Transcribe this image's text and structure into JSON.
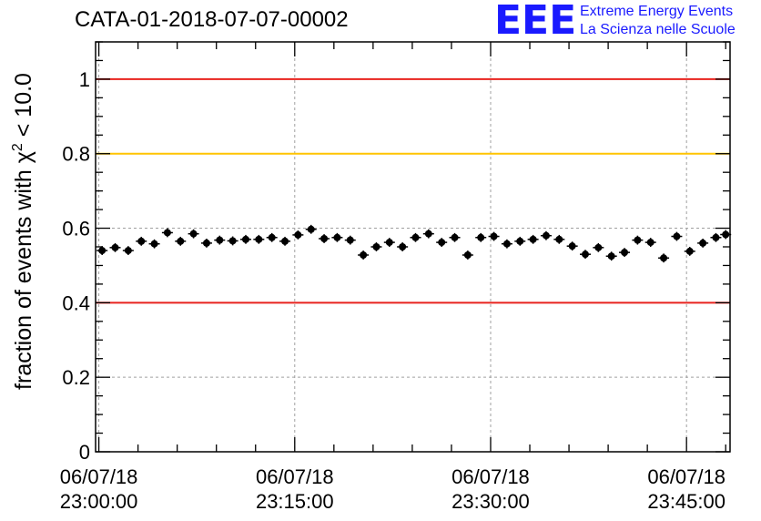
{
  "title": "CATA-01-2018-07-07-00002",
  "logo": {
    "mark": "EEE",
    "line1": "Extreme Energy Events",
    "line2": "La Scienza nelle Scuole"
  },
  "colors": {
    "red_line": "#e8231e",
    "yellow_line": "#ffc400",
    "points": "#000000",
    "grid": "#a0a0a0",
    "logo": "#1a1aff"
  },
  "chart_data": {
    "type": "scatter",
    "title": "CATA-01-2018-07-07-00002",
    "ylabel": "fraction of events with χ² < 10.0",
    "xlabel": "",
    "ylim": [
      0,
      1.1
    ],
    "xlim": [
      "2018-07-06 22:59:45",
      "2018-07-06 23:48:20"
    ],
    "x_ticks": [
      {
        "line1": "06/07/18",
        "line2": "23:00:00"
      },
      {
        "line1": "06/07/18",
        "line2": "23:15:00"
      },
      {
        "line1": "06/07/18",
        "line2": "23:30:00"
      },
      {
        "line1": "06/07/18",
        "line2": "23:45:00"
      }
    ],
    "y_ticks": [
      "0",
      "0.2",
      "0.4",
      "0.6",
      "0.8",
      "1"
    ],
    "grid": true,
    "reference_lines": [
      {
        "y": 1.0,
        "color": "red"
      },
      {
        "y": 0.8,
        "color": "yellow"
      },
      {
        "y": 0.4,
        "color": "red"
      }
    ],
    "series": [
      {
        "x": [
          "23:00:15",
          "23:01:15",
          "23:02:15",
          "23:03:15",
          "23:04:15",
          "23:05:15",
          "23:06:15",
          "23:07:15",
          "23:08:15",
          "23:09:15",
          "23:10:15",
          "23:11:15",
          "23:12:15",
          "23:13:15",
          "23:14:15",
          "23:15:15",
          "23:16:15",
          "23:17:15",
          "23:18:15",
          "23:19:15",
          "23:20:15",
          "23:21:15",
          "23:22:15",
          "23:23:15",
          "23:24:15",
          "23:25:15",
          "23:26:15",
          "23:27:15",
          "23:28:15",
          "23:29:15",
          "23:30:15",
          "23:31:15",
          "23:32:15",
          "23:33:15",
          "23:34:15",
          "23:35:15",
          "23:36:15",
          "23:37:15",
          "23:38:15",
          "23:39:15",
          "23:40:15",
          "23:41:15",
          "23:42:15",
          "23:43:15",
          "23:44:15",
          "23:45:15",
          "23:46:15",
          "23:47:15"
        ],
        "y": [
          0.54,
          0.548,
          0.54,
          0.565,
          0.558,
          0.588,
          0.565,
          0.585,
          0.56,
          0.568,
          0.566,
          0.57,
          0.57,
          0.575,
          0.565,
          0.582,
          0.597,
          0.572,
          0.575,
          0.568,
          0.528,
          0.55,
          0.562,
          0.55,
          0.575,
          0.585,
          0.562,
          0.575,
          0.528,
          0.575,
          0.578,
          0.558,
          0.565,
          0.57,
          0.58,
          0.57,
          0.552,
          0.53,
          0.548,
          0.525,
          0.535,
          0.568,
          0.562,
          0.52,
          0.578,
          0.538,
          0.56,
          0.575
        ],
        "y_err": 0.012
      }
    ],
    "extra_point": {
      "x": "23:48:00",
      "y": 0.583
    }
  }
}
